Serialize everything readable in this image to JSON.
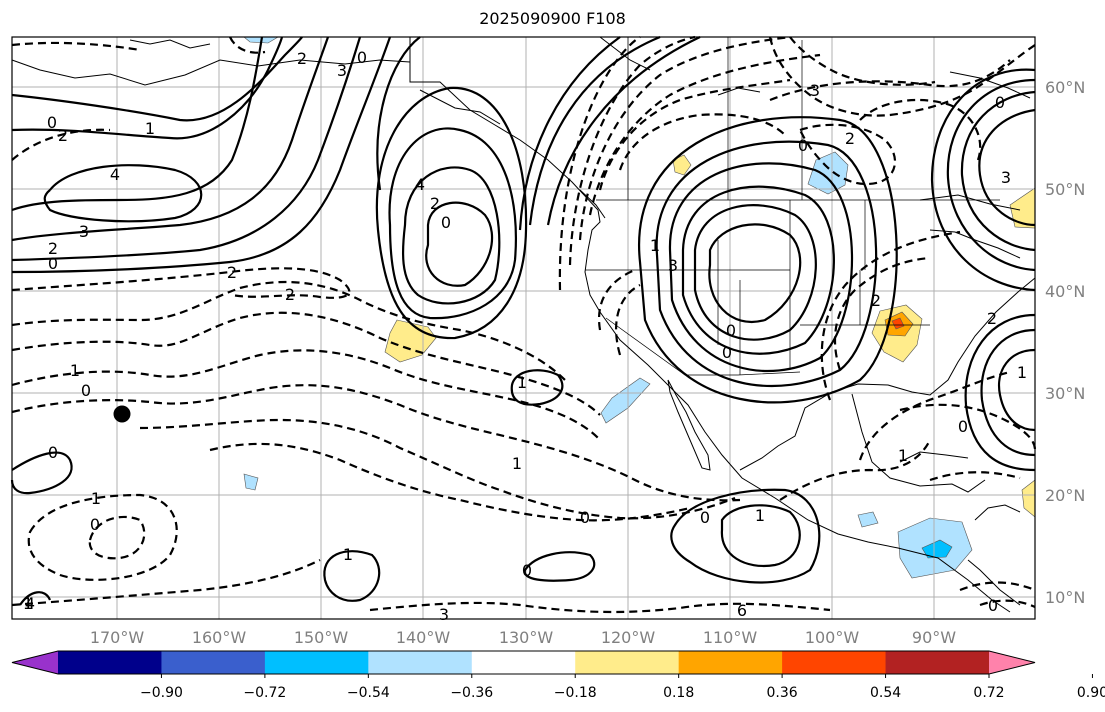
{
  "title": "2025090900 F108",
  "map": {
    "type": "contour-map",
    "domain": {
      "lon_range": [
        "180°W",
        "80°W"
      ],
      "lat_range": [
        "8°N",
        "65°N"
      ]
    },
    "graticule": true,
    "lon_labels": [
      "170°W",
      "160°W",
      "150°W",
      "140°W",
      "130°W",
      "120°W",
      "110°W",
      "100°W",
      "90°W"
    ],
    "lat_labels": [
      "60°N",
      "50°N",
      "40°N",
      "30°N",
      "20°N",
      "10°N"
    ],
    "contour_labels": [
      "0",
      "2",
      "1",
      "4",
      "3",
      "2",
      "0",
      "2",
      "0",
      "3",
      "4",
      "2",
      "0",
      "2",
      "2",
      "1",
      "0",
      "0",
      "1",
      "0",
      "1",
      "1",
      "0",
      "1",
      "0",
      "0",
      "1",
      "6",
      "3",
      "4",
      "3",
      "0",
      "2",
      "2",
      "1",
      "3",
      "0",
      "0",
      "0",
      "1",
      "0",
      "3",
      "2",
      "1",
      "0",
      "1"
    ],
    "marker": {
      "shape": "filled-circle",
      "color": "#000000"
    }
  },
  "colorbar": {
    "colors": [
      "#9932cc",
      "#00008b",
      "#3a5fcd",
      "#00bfff",
      "#b0e2ff",
      "#ffffff",
      "#ffec8b",
      "#ffa500",
      "#ff4500",
      "#b22222",
      "#ff82ab"
    ],
    "tick_labels": [
      "−0.90",
      "−0.72",
      "−0.54",
      "−0.36",
      "−0.18",
      "0.18",
      "0.36",
      "0.54",
      "0.72",
      "0.90"
    ],
    "extend": "both"
  }
}
